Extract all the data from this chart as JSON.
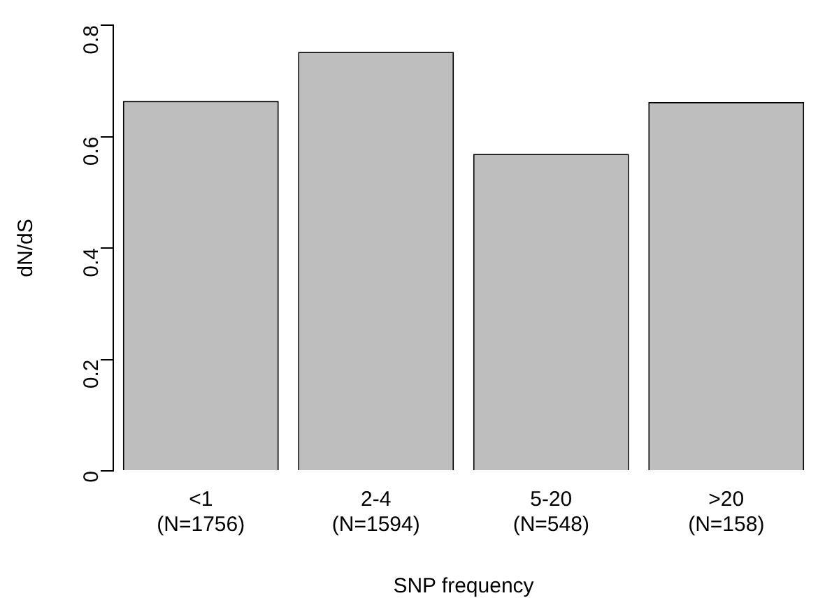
{
  "chart_data": {
    "type": "bar",
    "xlabel": "SNP frequency",
    "ylabel": "dN/dS",
    "categories": [
      "<1\n(N=1756)",
      "2-4\n(N=1594)",
      "5-20\n(N=548)",
      ">20\n(N=158)"
    ],
    "values": [
      0.664,
      0.752,
      0.569,
      0.662
    ],
    "color": "#bebebe",
    "ylim": [
      0,
      0.8
    ],
    "yticks": [
      0,
      0.2,
      0.4,
      0.6,
      0.8
    ],
    "grid": false,
    "legend": false
  }
}
